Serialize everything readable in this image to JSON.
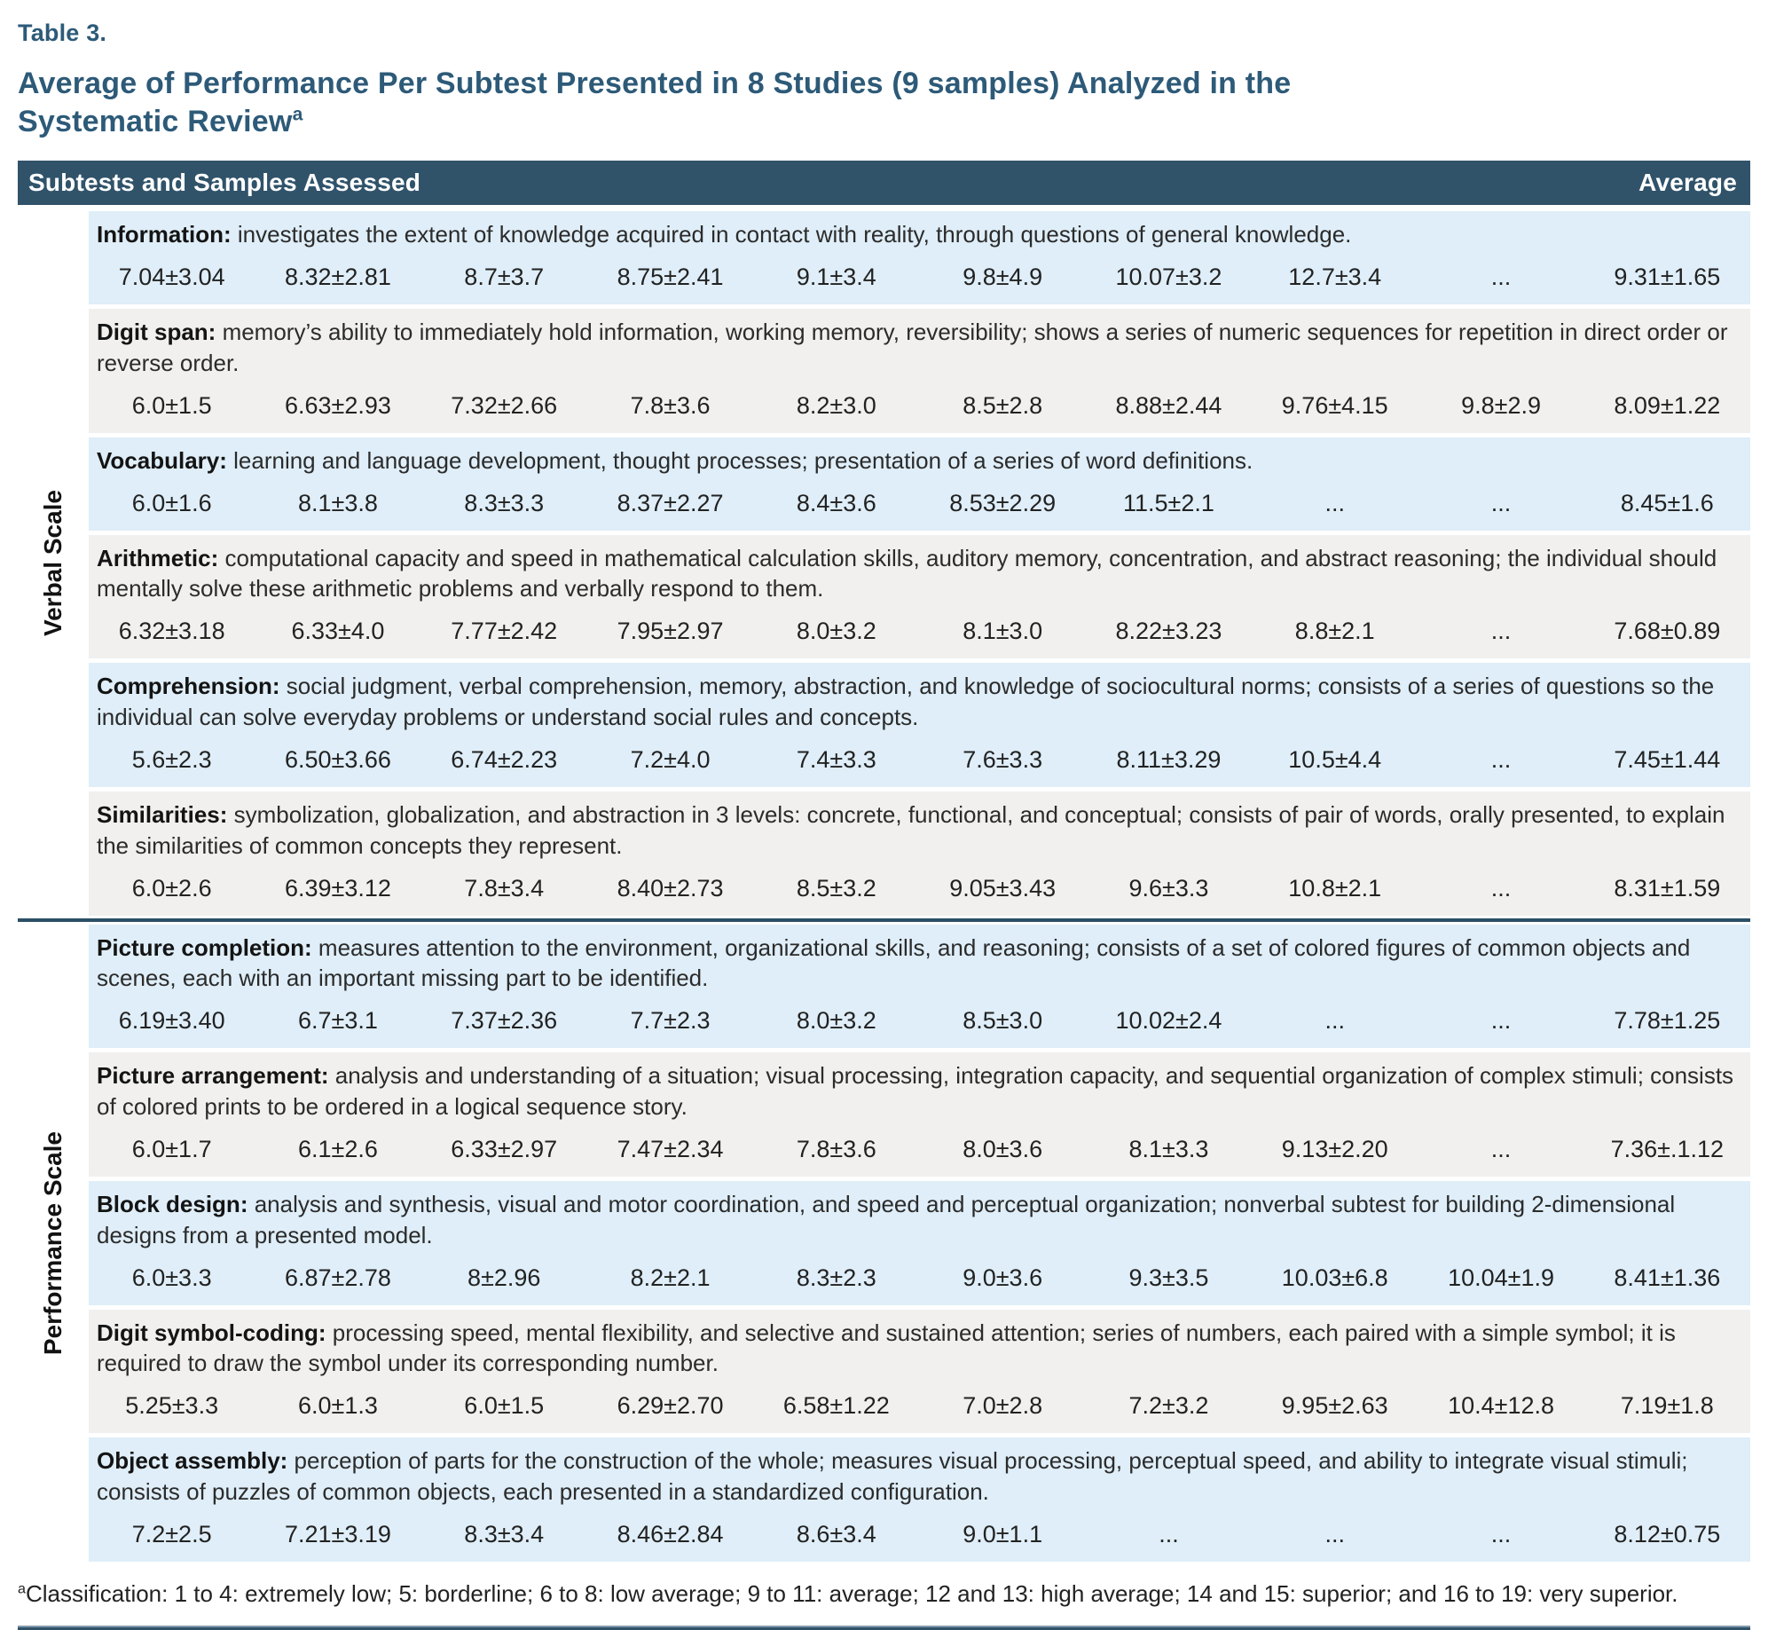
{
  "table_label": "Table 3.",
  "title": "Average of Performance Per Subtest Presented in 8 Studies (9 samples) Analyzed in the Systematic Review",
  "title_superscript": "a",
  "header": {
    "left": "Subtests and Samples Assessed",
    "right": "Average"
  },
  "sections": [
    {
      "label": "Verbal Scale",
      "rows": [
        {
          "name": "Information:",
          "description": "investigates the extent of knowledge acquired in contact with reality, through questions of general knowledge.",
          "values": [
            "7.04±3.04",
            "8.32±2.81",
            "8.7±3.7",
            "8.75±2.41",
            "9.1±3.4",
            "9.8±4.9",
            "10.07±3.2",
            "12.7±3.4",
            "..."
          ],
          "average": "9.31±1.65"
        },
        {
          "name": "Digit span:",
          "description": "memory’s ability to immediately hold information, working memory, reversibility; shows a series of numeric sequences for repetition in direct order or reverse order.",
          "values": [
            "6.0±1.5",
            "6.63±2.93",
            "7.32±2.66",
            "7.8±3.6",
            "8.2±3.0",
            "8.5±2.8",
            "8.88±2.44",
            "9.76±4.15",
            "9.8±2.9"
          ],
          "average": "8.09±1.22"
        },
        {
          "name": "Vocabulary:",
          "description": "learning and language development, thought processes; presentation of a series of word definitions.",
          "values": [
            "6.0±1.6",
            "8.1±3.8",
            "8.3±3.3",
            "8.37±2.27",
            "8.4±3.6",
            "8.53±2.29",
            "11.5±2.1",
            "...",
            "..."
          ],
          "average": "8.45±1.6"
        },
        {
          "name": "Arithmetic:",
          "description": "computational capacity and speed in mathematical calculation skills, auditory memory, concentration, and abstract reasoning; the individual should mentally solve these arithmetic problems and verbally respond to them.",
          "values": [
            "6.32±3.18",
            "6.33±4.0",
            "7.77±2.42",
            "7.95±2.97",
            "8.0±3.2",
            "8.1±3.0",
            "8.22±3.23",
            "8.8±2.1",
            "..."
          ],
          "average": "7.68±0.89"
        },
        {
          "name": "Comprehension:",
          "description": "social judgment, verbal comprehension, memory, abstraction, and knowledge of sociocultural norms; consists of a series of questions so the individual can solve everyday problems or understand social rules and concepts.",
          "values": [
            "5.6±2.3",
            "6.50±3.66",
            "6.74±2.23",
            "7.2±4.0",
            "7.4±3.3",
            "7.6±3.3",
            "8.11±3.29",
            "10.5±4.4",
            "..."
          ],
          "average": "7.45±1.44"
        },
        {
          "name": "Similarities:",
          "description": "symbolization, globalization, and abstraction in 3 levels: concrete, functional, and conceptual; consists of pair of words, orally presented, to explain the similarities of common concepts they represent.",
          "values": [
            "6.0±2.6",
            "6.39±3.12",
            "7.8±3.4",
            "8.40±2.73",
            "8.5±3.2",
            "9.05±3.43",
            "9.6±3.3",
            "10.8±2.1",
            "..."
          ],
          "average": "8.31±1.59"
        }
      ]
    },
    {
      "label": "Performance Scale",
      "rows": [
        {
          "name": "Picture completion:",
          "description": "measures attention to the environment, organizational skills, and reasoning; consists of a set of colored figures of common objects and scenes, each with an important missing part to be identified.",
          "values": [
            "6.19±3.40",
            "6.7±3.1",
            "7.37±2.36",
            "7.7±2.3",
            "8.0±3.2",
            "8.5±3.0",
            "10.02±2.4",
            "...",
            "..."
          ],
          "average": "7.78±1.25"
        },
        {
          "name": "Picture arrangement:",
          "description": "analysis and understanding of a situation; visual processing, integration capacity, and sequential organization of complex stimuli; consists of colored prints to be ordered in a logical sequence story.",
          "values": [
            "6.0±1.7",
            "6.1±2.6",
            "6.33±2.97",
            "7.47±2.34",
            "7.8±3.6",
            "8.0±3.6",
            "8.1±3.3",
            "9.13±2.20",
            "..."
          ],
          "average": "7.36±.1.12"
        },
        {
          "name": "Block design:",
          "description": "analysis and synthesis, visual and motor coordination, and speed and perceptual organization; nonverbal subtest for building 2-dimensional designs from a presented model.",
          "values": [
            "6.0±3.3",
            "6.87±2.78",
            "8±2.96",
            "8.2±2.1",
            "8.3±2.3",
            "9.0±3.6",
            "9.3±3.5",
            "10.03±6.8",
            "10.04±1.9"
          ],
          "average": "8.41±1.36"
        },
        {
          "name": "Digit symbol-coding:",
          "description": "processing speed, mental flexibility, and selective and sustained attention; series of numbers, each paired with a simple symbol; it is required to draw the symbol under its corresponding number.",
          "values": [
            "5.25±3.3",
            "6.0±1.3",
            "6.0±1.5",
            "6.29±2.70",
            "6.58±1.22",
            "7.0±2.8",
            "7.2±3.2",
            "9.95±2.63",
            "10.4±12.8"
          ],
          "average": "7.19±1.8"
        },
        {
          "name": "Object assembly:",
          "description": "perception of parts for the construction of the whole; measures visual processing, perceptual speed, and ability to integrate visual stimuli; consists of puzzles of common objects, each presented in a standardized configuration.",
          "values": [
            "7.2±2.5",
            "7.21±3.19",
            "8.3±3.4",
            "8.46±2.84",
            "8.6±3.4",
            "9.0±1.1",
            "...",
            "...",
            "..."
          ],
          "average": "8.12±0.75"
        }
      ]
    }
  ],
  "footnote": {
    "marker": "a",
    "text": "Classification: 1 to 4: extremely low; 5: borderline; 6 to 8: low average; 9 to 11: average; 12 and 13: high average; 14 and 15: superior; and 16 to 19: very superior."
  },
  "colors": {
    "header_bar": "#30536a",
    "row_blue": "#dfeef8",
    "row_gray": "#f1f0ef",
    "title_text": "#2d5a78",
    "separator": "#2b4f66",
    "rule_light": "#8299ab",
    "rule_dark": "#30536a"
  }
}
